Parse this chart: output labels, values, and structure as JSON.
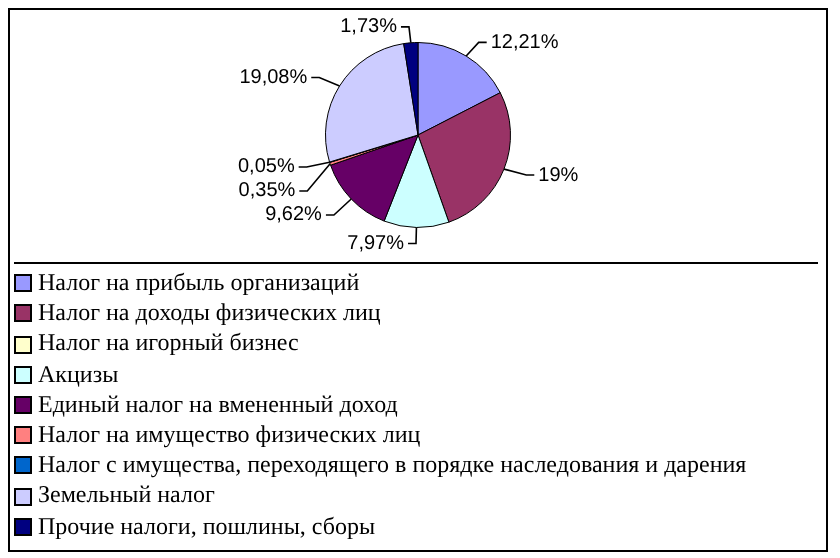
{
  "chart_data": {
    "type": "pie",
    "categories": [
      "Налог на прибыль организаций",
      "Налог на доходы физических лиц",
      "Налог на игорный бизнес",
      "Акцизы",
      "Единый налог на вмененный доход",
      "Налог на имущество физических лиц",
      "Налог с имущества, переходящего в порядке наследования и дарения",
      "Земельный налог",
      "Прочие налоги, пошлины, сборы"
    ],
    "values": [
      12.21,
      19,
      null,
      7.97,
      9.62,
      0.35,
      0.05,
      19.08,
      1.73
    ],
    "value_labels": [
      "12,21%",
      "19%",
      null,
      "7,97%",
      "9,62%",
      "0,35%",
      "0,05%",
      "19,08%",
      "1,73%"
    ],
    "colors": [
      "#9999ff",
      "#993366",
      "#ffffcc",
      "#ccffff",
      "#660066",
      "#ff8080",
      "#0066cc",
      "#ccccff",
      "#000080"
    ],
    "legend": "bottom"
  }
}
